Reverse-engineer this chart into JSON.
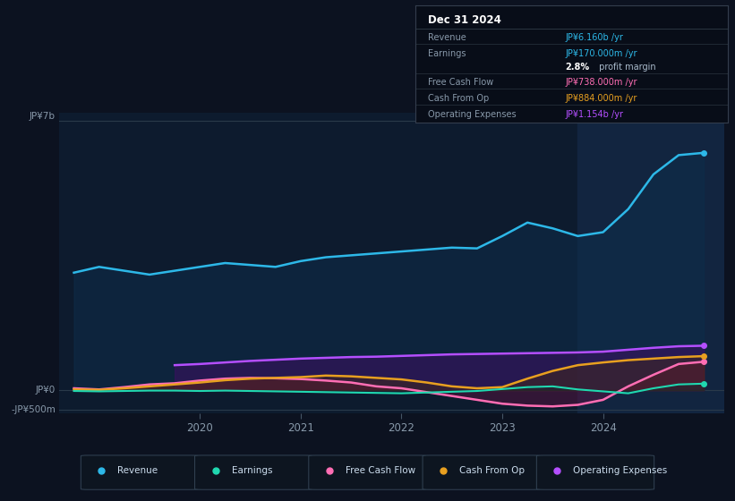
{
  "bg_color": "#0c1220",
  "plot_bg_color": "#0d1b2e",
  "highlight_bg_color": "#122540",
  "ytick_labels": [
    "JP¥7b",
    "JP¥0",
    "-JP¥500m"
  ],
  "xtick_labels": [
    "2020",
    "2021",
    "2022",
    "2023",
    "2024"
  ],
  "xtick_positions": [
    2020,
    2021,
    2022,
    2023,
    2024
  ],
  "ymin": -600000000,
  "ymax": 7200000000,
  "xmin": 2018.6,
  "xmax": 2025.2,
  "highlight_xstart": 2023.75,
  "series": {
    "Revenue": {
      "color": "#2db8e8",
      "fill_color": "#0e2d4a",
      "data_x": [
        2018.75,
        2019.0,
        2019.25,
        2019.5,
        2019.75,
        2020.0,
        2020.25,
        2020.5,
        2020.75,
        2021.0,
        2021.25,
        2021.5,
        2021.75,
        2022.0,
        2022.25,
        2022.5,
        2022.75,
        2023.0,
        2023.25,
        2023.5,
        2023.75,
        2024.0,
        2024.25,
        2024.5,
        2024.75,
        2025.0
      ],
      "data_y": [
        3050000000,
        3200000000,
        3100000000,
        3000000000,
        3100000000,
        3200000000,
        3300000000,
        3250000000,
        3200000000,
        3350000000,
        3450000000,
        3500000000,
        3550000000,
        3600000000,
        3650000000,
        3700000000,
        3680000000,
        4000000000,
        4350000000,
        4200000000,
        4000000000,
        4100000000,
        4700000000,
        5600000000,
        6100000000,
        6160000000
      ]
    },
    "OperatingExpenses": {
      "color": "#b44fff",
      "fill_color": "#3a1060",
      "data_x": [
        2019.75,
        2020.0,
        2020.25,
        2020.5,
        2020.75,
        2021.0,
        2021.25,
        2021.5,
        2021.75,
        2022.0,
        2022.25,
        2022.5,
        2022.75,
        2023.0,
        2023.25,
        2023.5,
        2023.75,
        2024.0,
        2024.25,
        2024.5,
        2024.75,
        2025.0
      ],
      "data_y": [
        650000000,
        680000000,
        720000000,
        760000000,
        790000000,
        820000000,
        840000000,
        860000000,
        870000000,
        890000000,
        910000000,
        930000000,
        940000000,
        950000000,
        960000000,
        970000000,
        980000000,
        1000000000,
        1050000000,
        1100000000,
        1140000000,
        1154000000
      ]
    },
    "FreeCashFlow": {
      "color": "#ff6eb4",
      "fill_color": "#601040",
      "data_x": [
        2018.75,
        2019.0,
        2019.25,
        2019.5,
        2019.75,
        2020.0,
        2020.25,
        2020.5,
        2020.75,
        2021.0,
        2021.25,
        2021.5,
        2021.75,
        2022.0,
        2022.25,
        2022.5,
        2022.75,
        2023.0,
        2023.25,
        2023.5,
        2023.75,
        2024.0,
        2024.25,
        2024.5,
        2024.75,
        2025.0
      ],
      "data_y": [
        50000000,
        20000000,
        80000000,
        150000000,
        180000000,
        250000000,
        300000000,
        320000000,
        310000000,
        290000000,
        250000000,
        200000000,
        100000000,
        50000000,
        -50000000,
        -150000000,
        -250000000,
        -350000000,
        -400000000,
        -420000000,
        -380000000,
        -250000000,
        100000000,
        400000000,
        680000000,
        738000000
      ]
    },
    "CashFromOp": {
      "color": "#e8a020",
      "fill_color": "#503000",
      "data_x": [
        2018.75,
        2019.0,
        2019.25,
        2019.5,
        2019.75,
        2020.0,
        2020.25,
        2020.5,
        2020.75,
        2021.0,
        2021.25,
        2021.5,
        2021.75,
        2022.0,
        2022.25,
        2022.5,
        2022.75,
        2023.0,
        2023.25,
        2023.5,
        2023.75,
        2024.0,
        2024.25,
        2024.5,
        2024.75,
        2025.0
      ],
      "data_y": [
        20000000,
        10000000,
        50000000,
        100000000,
        150000000,
        200000000,
        260000000,
        300000000,
        320000000,
        340000000,
        380000000,
        360000000,
        320000000,
        280000000,
        200000000,
        100000000,
        50000000,
        80000000,
        300000000,
        500000000,
        650000000,
        720000000,
        780000000,
        820000000,
        860000000,
        884000000
      ]
    },
    "Earnings": {
      "color": "#20d8b0",
      "fill_color": "#003030",
      "data_x": [
        2018.75,
        2019.0,
        2019.25,
        2019.5,
        2019.75,
        2020.0,
        2020.25,
        2020.5,
        2020.75,
        2021.0,
        2021.25,
        2021.5,
        2021.75,
        2022.0,
        2022.25,
        2022.5,
        2022.75,
        2023.0,
        2023.25,
        2023.5,
        2023.75,
        2024.0,
        2024.25,
        2024.5,
        2024.75,
        2025.0
      ],
      "data_y": [
        -20000000,
        -30000000,
        -20000000,
        -10000000,
        -10000000,
        -20000000,
        -10000000,
        -20000000,
        -30000000,
        -40000000,
        -50000000,
        -60000000,
        -70000000,
        -80000000,
        -60000000,
        -40000000,
        -20000000,
        30000000,
        80000000,
        100000000,
        20000000,
        -30000000,
        -80000000,
        50000000,
        150000000,
        170000000
      ]
    }
  },
  "info_box": {
    "title": "Dec 31 2024",
    "rows": [
      {
        "label": "Revenue",
        "value": "JP¥6.160b /yr",
        "value_color": "#2db8e8"
      },
      {
        "label": "Earnings",
        "value": "JP¥170.000m /yr",
        "value_color": "#2db8e8"
      },
      {
        "label": "",
        "value2_bold": "2.8%",
        "value2_rest": " profit margin"
      },
      {
        "label": "Free Cash Flow",
        "value": "JP¥738.000m /yr",
        "value_color": "#ff6eb4"
      },
      {
        "label": "Cash From Op",
        "value": "JP¥884.000m /yr",
        "value_color": "#e8a020"
      },
      {
        "label": "Operating Expenses",
        "value": "JP¥1.154b /yr",
        "value_color": "#b44fff"
      }
    ]
  },
  "legend_items": [
    {
      "label": "Revenue",
      "color": "#2db8e8"
    },
    {
      "label": "Earnings",
      "color": "#20d8b0"
    },
    {
      "label": "Free Cash Flow",
      "color": "#ff6eb4"
    },
    {
      "label": "Cash From Op",
      "color": "#e8a020"
    },
    {
      "label": "Operating Expenses",
      "color": "#b44fff"
    }
  ]
}
